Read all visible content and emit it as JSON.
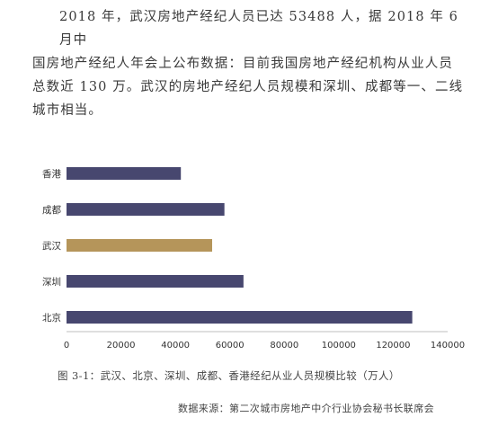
{
  "paragraph": {
    "line1": "2018 年，武汉房地产经纪人员已达 53488 人，据 2018 年 6 月中",
    "line2": "国房地产经纪人年会上公布数据：目前我国房地产经纪机构从业人员",
    "line3": "总数近 130 万。武汉的房地产经纪人员规模和深圳、成都等一、二线",
    "line4": "城市相当。"
  },
  "caption": "图 3-1：武汉、北京、深圳、成都、香港经纪从业人员规模比较（万人）",
  "source": "数据来源：第二次城市房地产中介行业协会秘书长联席会",
  "colors": {
    "default_bar": "#47476f",
    "highlight_bar": "#b5955a",
    "axis": "#bfbfbf"
  },
  "chart_data": {
    "type": "bar",
    "orientation": "horizontal",
    "categories": [
      "香港",
      "成都",
      "武汉",
      "深圳",
      "北京"
    ],
    "values": [
      42000,
      58000,
      53488,
      65000,
      127000
    ],
    "highlight_category": "武汉",
    "x_ticks": [
      "0",
      "20000",
      "40000",
      "60000",
      "80000",
      "100000",
      "120000",
      "140000"
    ],
    "xlim": [
      0,
      140000
    ],
    "grid": false,
    "legend": "none"
  }
}
